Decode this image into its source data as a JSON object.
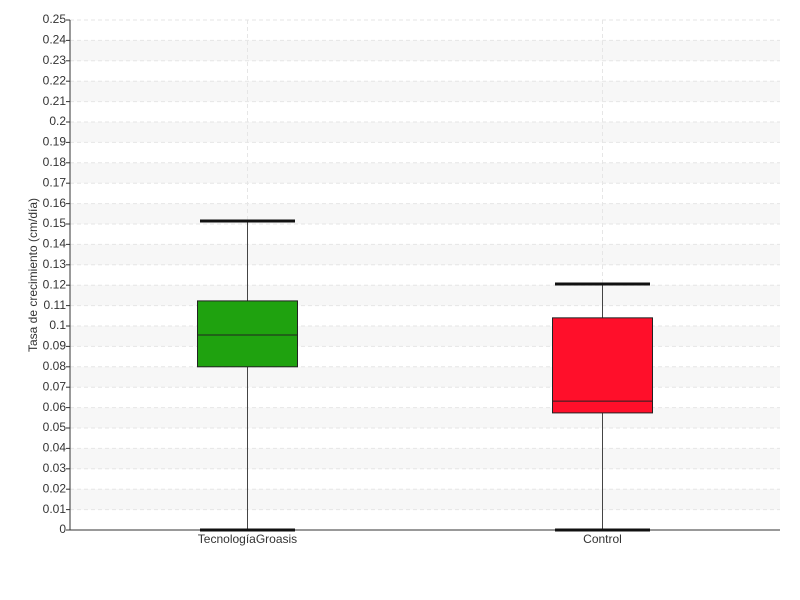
{
  "chart_data": {
    "type": "box",
    "ylabel": "Tasa de crecimiento (cm/día)",
    "categories": [
      "TecnologíaGroasis",
      "Control"
    ],
    "colors": [
      "#1fa20f",
      "#ff0f2a"
    ],
    "min": [
      0,
      0
    ],
    "q1": [
      0.08,
      0.0574
    ],
    "median": [
      0.0956,
      0.0632
    ],
    "q3": [
      0.1123,
      0.104
    ],
    "max": [
      0.1515,
      0.1206
    ],
    "ylim": [
      0,
      0.25
    ],
    "yticks": [
      0,
      0.01,
      0.02,
      0.03,
      0.04,
      0.05,
      0.06,
      0.07,
      0.08,
      0.09,
      0.1,
      0.11,
      0.12,
      0.13,
      0.14,
      0.15,
      0.16,
      0.17,
      0.18,
      0.19,
      0.2,
      0.21,
      0.22,
      0.23,
      0.24,
      0.25
    ],
    "grid": true
  }
}
